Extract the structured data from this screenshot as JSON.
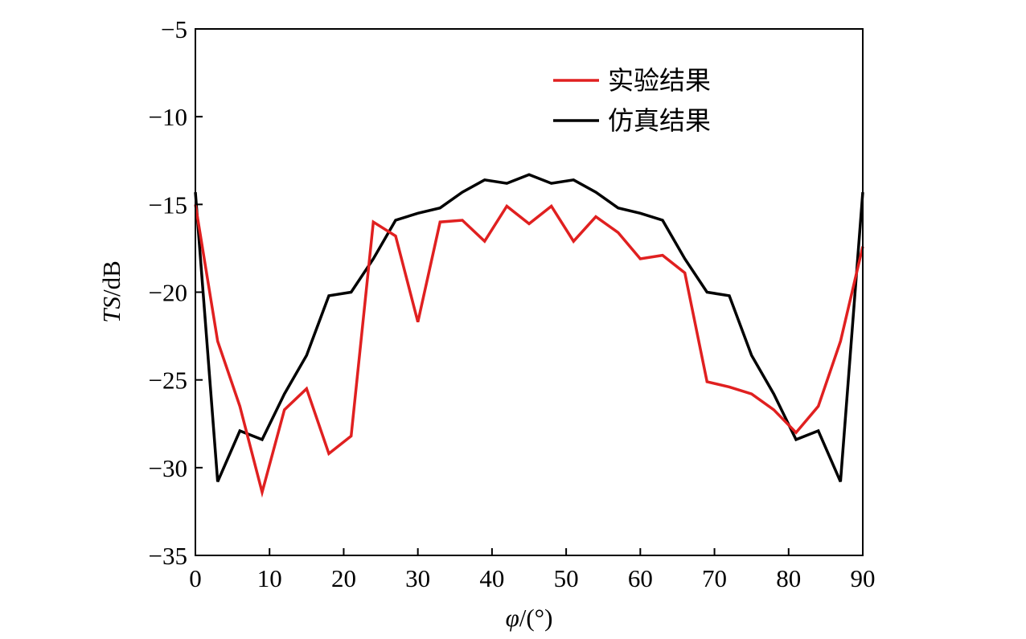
{
  "chart_data": {
    "type": "line",
    "xlabel": "φ/(°)",
    "xlabel_parts": {
      "var": "φ",
      "unit": "/(°)"
    },
    "ylabel": "TS/dB",
    "ylabel_parts": {
      "var": "TS",
      "unit": "/dB"
    },
    "xlim": [
      0,
      90
    ],
    "ylim": [
      -35,
      -5
    ],
    "xticks": [
      0,
      10,
      20,
      30,
      40,
      50,
      60,
      70,
      80,
      90
    ],
    "yticks": [
      -5,
      -10,
      -15,
      -20,
      -25,
      -30,
      -35
    ],
    "xtick_labels": [
      "0",
      "10",
      "20",
      "30",
      "40",
      "50",
      "60",
      "70",
      "80",
      "90"
    ],
    "ytick_labels": [
      "−5",
      "−10",
      "−15",
      "−20",
      "−25",
      "−30",
      "−35"
    ],
    "grid": false,
    "legend_position": "top-right",
    "x": [
      0,
      3,
      6,
      9,
      12,
      15,
      18,
      21,
      24,
      27,
      30,
      33,
      36,
      39,
      42,
      45,
      48,
      51,
      54,
      57,
      60,
      63,
      66,
      69,
      72,
      75,
      78,
      81,
      84,
      87,
      90
    ],
    "series": [
      {
        "name": "实验结果",
        "color": "#e02020",
        "values": [
          -15.0,
          -22.8,
          -26.5,
          -31.4,
          -26.7,
          -25.5,
          -29.2,
          -28.2,
          -16.0,
          -16.8,
          -21.7,
          -16.0,
          -15.9,
          -17.1,
          -15.1,
          -16.1,
          -15.1,
          -17.1,
          -15.7,
          -16.6,
          -18.1,
          -17.9,
          -18.9,
          -25.1,
          -25.4,
          -25.8,
          -26.7,
          -28.0,
          -26.5,
          -22.8,
          -17.4
        ]
      },
      {
        "name": "仿真结果",
        "color": "#000000",
        "values": [
          -14.3,
          -30.8,
          -27.9,
          -28.4,
          -25.8,
          -23.6,
          -20.2,
          -20.0,
          -18.1,
          -15.9,
          -15.5,
          -15.2,
          -14.3,
          -13.6,
          -13.8,
          -13.3,
          -13.8,
          -13.6,
          -14.3,
          -15.2,
          -15.5,
          -15.9,
          -18.1,
          -20.0,
          -20.2,
          -23.6,
          -25.8,
          -28.4,
          -27.9,
          -30.8,
          -14.3
        ]
      }
    ]
  }
}
